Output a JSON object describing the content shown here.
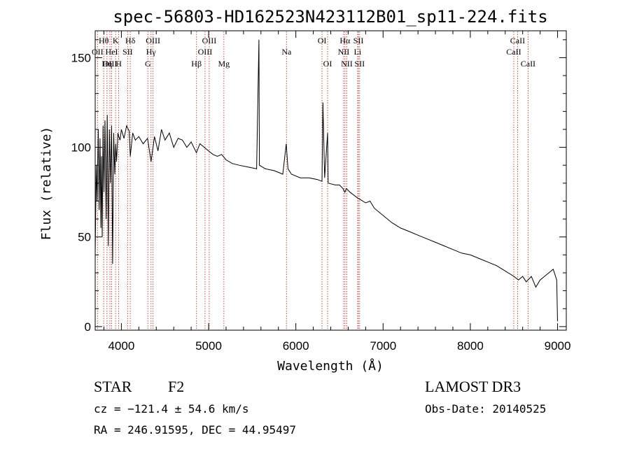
{
  "chart_data": {
    "type": "line",
    "title": "spec-56803-HD162523N423112B01_sp11-224.fits",
    "xlabel": "Wavelength (Å)",
    "ylabel": "Flux (relative)",
    "xlim": [
      3700,
      9100
    ],
    "ylim": [
      -2,
      165
    ],
    "x_ticks": [
      4000,
      5000,
      6000,
      7000,
      8000,
      9000
    ],
    "x_tick_labels": [
      "4000",
      "5000",
      "6000",
      "7000",
      "8000",
      "9000"
    ],
    "y_ticks": [
      0,
      50,
      100,
      150
    ],
    "y_tick_labels": [
      "0",
      "50",
      "100",
      "150"
    ],
    "grid": false,
    "legend": "none",
    "line_color": "#000000",
    "marker_color": "#c0504d",
    "series": [
      {
        "x": [
          3700,
          3712,
          3722,
          3735,
          3745,
          3755,
          3765,
          3772,
          3780,
          3790,
          3800,
          3812,
          3825,
          3838,
          3850,
          3862,
          3875,
          3888,
          3900,
          3912,
          3925,
          3935,
          3945,
          3960,
          3970,
          3985,
          4000,
          4030,
          4060,
          4090,
          4102,
          4130,
          4160,
          4200,
          4250,
          4300,
          4340,
          4380,
          4420,
          4460,
          4500,
          4550,
          4600,
          4650,
          4700,
          4750,
          4800,
          4860,
          4900,
          4950,
          5000,
          5050,
          5100,
          5150,
          5200,
          5270,
          5350,
          5450,
          5550,
          5577,
          5582,
          5650,
          5750,
          5850,
          5890,
          5910,
          5950,
          6050,
          6150,
          6250,
          6300,
          6310,
          6330,
          6364,
          6370,
          6450,
          6500,
          6540,
          6562,
          6580,
          6620,
          6700,
          6800,
          6850,
          6900,
          7000,
          7100,
          7200,
          7300,
          7400,
          7500,
          7600,
          7700,
          7800,
          7900,
          8000,
          8100,
          8200,
          8300,
          8400,
          8500,
          8550,
          8600,
          8640,
          8700,
          8750,
          8800,
          8850,
          8900,
          8950,
          8990,
          9000
        ],
        "y": [
          40,
          90,
          70,
          110,
          65,
          105,
          55,
          95,
          50,
          112,
          75,
          115,
          60,
          118,
          45,
          110,
          80,
          112,
          35,
          108,
          85,
          102,
          92,
          108,
          106,
          104,
          110,
          105,
          112,
          109,
          95,
          108,
          104,
          106,
          102,
          105,
          92,
          106,
          98,
          110,
          104,
          108,
          100,
          105,
          104,
          100,
          103,
          97,
          102,
          100,
          98,
          96,
          95,
          96,
          93,
          91,
          90,
          89,
          88,
          160,
          90,
          88,
          87,
          85,
          102,
          88,
          85,
          83,
          83,
          82,
          81,
          125,
          83,
          108,
          80,
          79,
          79,
          77,
          75,
          77,
          75,
          72,
          69,
          70,
          66,
          62,
          58,
          55,
          53,
          51,
          49,
          47,
          45,
          43,
          41,
          40,
          38,
          36,
          34,
          31,
          28,
          26,
          28,
          25,
          28,
          22,
          26,
          28,
          30,
          32,
          26,
          3
        ],
        "name": ""
      }
    ],
    "lines": [
      {
        "label": "Hθ",
        "x": 3798,
        "row": 1
      },
      {
        "label": "OII",
        "x": 3727,
        "row": 2
      },
      {
        "label": "OIII",
        "x": 3869,
        "row": 3
      },
      {
        "label": "Hη",
        "x": 3835,
        "row": 3
      },
      {
        "label": "HeI",
        "x": 3889,
        "row": 2
      },
      {
        "label": "K",
        "x": 3934,
        "row": 1
      },
      {
        "label": "H",
        "x": 3969,
        "row": 3
      },
      {
        "label": "SII",
        "x": 4072,
        "row": 2
      },
      {
        "label": "Hδ",
        "x": 4102,
        "row": 1
      },
      {
        "label": "G",
        "x": 4304,
        "row": 3
      },
      {
        "label": "Hγ",
        "x": 4340,
        "row": 2
      },
      {
        "label": "OIII",
        "x": 4363,
        "row": 1
      },
      {
        "label": "Hβ",
        "x": 4861,
        "row": 3
      },
      {
        "label": "OIII",
        "x": 4959,
        "row": 2
      },
      {
        "label": "OIII",
        "x": 5007,
        "row": 1
      },
      {
        "label": "Mg",
        "x": 5175,
        "row": 3
      },
      {
        "label": "Na",
        "x": 5893,
        "row": 2
      },
      {
        "label": "OI",
        "x": 6300,
        "row": 1
      },
      {
        "label": "OI",
        "x": 6364,
        "row": 3
      },
      {
        "label": "Hα",
        "x": 6563,
        "row": 1
      },
      {
        "label": "NII",
        "x": 6548,
        "row": 2
      },
      {
        "label": "NII",
        "x": 6584,
        "row": 3
      },
      {
        "label": "SII",
        "x": 6717,
        "row": 1
      },
      {
        "label": "Li",
        "x": 6708,
        "row": 2
      },
      {
        "label": "SII",
        "x": 6731,
        "row": 3
      },
      {
        "label": "CaII",
        "x": 8542,
        "row": 1
      },
      {
        "label": "CaII",
        "x": 8498,
        "row": 2
      },
      {
        "label": "CaII",
        "x": 8662,
        "row": 3
      }
    ]
  },
  "info": {
    "object_class": "STAR",
    "subclass": "F2",
    "survey": "LAMOST DR3",
    "cz": "cz = −121.4 ± 54.6 km/s",
    "obs_date": "Obs-Date: 20140525",
    "coords": "RA = 246.91595, DEC =  44.95497"
  }
}
